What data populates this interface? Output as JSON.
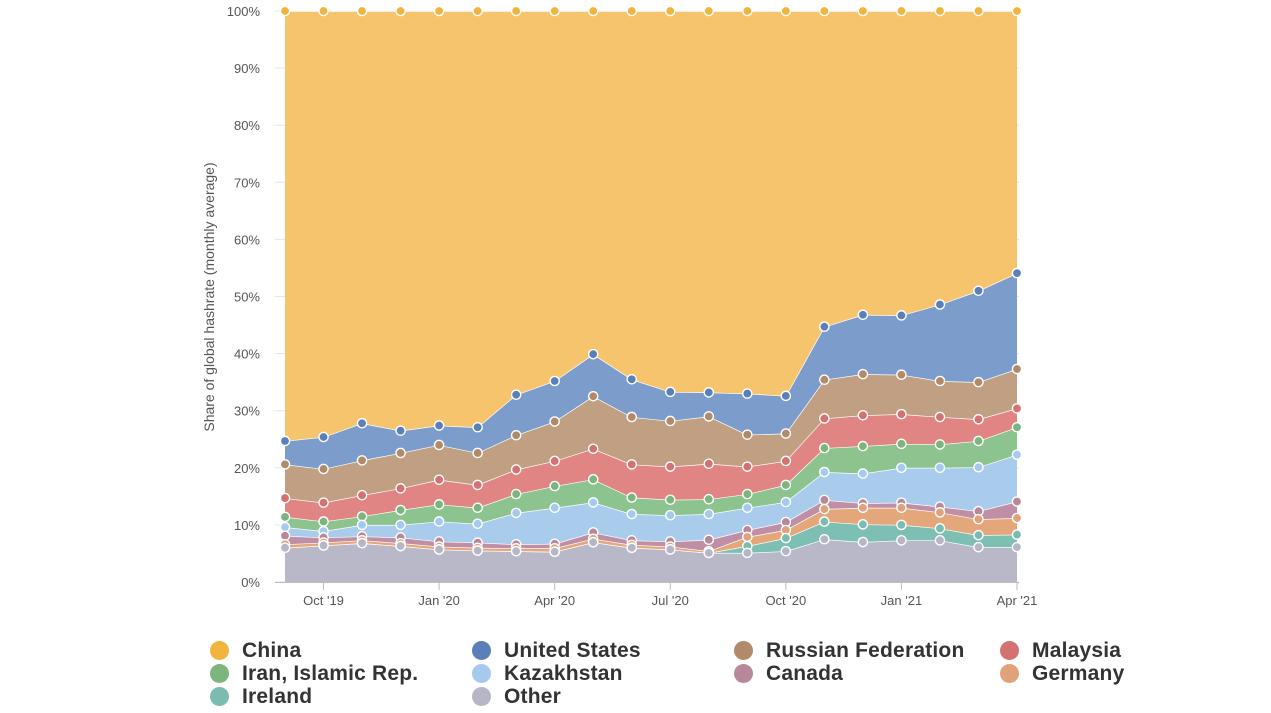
{
  "chart_data": {
    "type": "area",
    "stacking": "percent",
    "ylabel": "Share of global hashrate (monthly average)",
    "xlabel": "",
    "ylim": [
      0,
      100
    ],
    "y_ticks": [
      "0%",
      "10%",
      "20%",
      "30%",
      "40%",
      "50%",
      "60%",
      "70%",
      "80%",
      "90%",
      "100%"
    ],
    "months": [
      "Sep '19",
      "Oct '19",
      "Nov '19",
      "Dec '19",
      "Jan '20",
      "Feb '20",
      "Mar '20",
      "Apr '20",
      "May '20",
      "Jun '20",
      "Jul '20",
      "Aug '20",
      "Sep '20",
      "Oct '20",
      "Nov '20",
      "Dec '20",
      "Jan '21",
      "Feb '21",
      "Mar '21",
      "Apr '21"
    ],
    "x_tick_labels": [
      {
        "index": 1,
        "label": "Oct '19"
      },
      {
        "index": 4,
        "label": "Jan '20"
      },
      {
        "index": 7,
        "label": "Apr '20"
      },
      {
        "index": 10,
        "label": "Jul '20"
      },
      {
        "index": 13,
        "label": "Oct '20"
      },
      {
        "index": 16,
        "label": "Jan '21"
      },
      {
        "index": 19,
        "label": "Apr '21"
      }
    ],
    "grid": true,
    "legend_position": "bottom",
    "series": [
      {
        "name": "Other",
        "color": "#b8b8c8",
        "values": [
          6.0,
          6.4,
          6.8,
          6.3,
          5.7,
          5.5,
          5.4,
          5.3,
          6.9,
          6.0,
          5.7,
          5.1,
          5.1,
          5.4,
          7.5,
          7.0,
          7.3,
          7.3,
          6.1,
          6.1
        ]
      },
      {
        "name": "Ireland",
        "color": "#7dbfb3",
        "values": [
          0.0,
          0.0,
          0.0,
          0.0,
          0.0,
          0.0,
          0.0,
          0.0,
          0.0,
          0.0,
          0.0,
          0.0,
          1.2,
          2.3,
          3.1,
          3.1,
          2.7,
          2.1,
          2.1,
          2.2
        ]
      },
      {
        "name": "Germany",
        "color": "#e3a77b",
        "values": [
          0.6,
          0.5,
          0.5,
          0.5,
          0.5,
          0.5,
          0.5,
          0.6,
          0.6,
          0.5,
          0.5,
          0.3,
          1.6,
          1.4,
          2.2,
          2.9,
          3.0,
          2.8,
          2.8,
          2.9
        ]
      },
      {
        "name": "Canada",
        "color": "#c08fa5",
        "values": [
          1.5,
          0.9,
          0.7,
          1.0,
          0.9,
          0.9,
          0.7,
          0.8,
          1.1,
          0.8,
          0.9,
          2.0,
          1.2,
          1.4,
          1.6,
          0.8,
          0.9,
          1.0,
          1.4,
          2.9
        ]
      },
      {
        "name": "Kazakhstan",
        "color": "#a9cbec",
        "values": [
          1.5,
          1.1,
          2.0,
          2.2,
          3.5,
          3.3,
          5.5,
          6.3,
          5.2,
          4.6,
          4.6,
          4.5,
          3.9,
          3.5,
          4.9,
          5.2,
          6.1,
          6.8,
          7.7,
          8.2
        ]
      },
      {
        "name": "Iran, Islamic Rep.",
        "color": "#8cc38e",
        "values": [
          1.8,
          1.7,
          1.5,
          2.6,
          3.0,
          2.8,
          3.3,
          3.8,
          4.0,
          2.9,
          2.7,
          2.6,
          2.4,
          3.0,
          4.2,
          4.8,
          4.2,
          4.1,
          4.6,
          4.8
        ]
      },
      {
        "name": "Malaysia",
        "color": "#e08484",
        "values": [
          3.3,
          3.3,
          3.7,
          3.8,
          4.3,
          4.0,
          4.3,
          4.4,
          5.3,
          5.8,
          5.8,
          6.2,
          4.8,
          4.2,
          5.2,
          5.4,
          5.2,
          4.8,
          3.8,
          3.3
        ]
      },
      {
        "name": "Russian Federation",
        "color": "#c09f83",
        "values": [
          5.9,
          5.9,
          6.1,
          6.2,
          6.1,
          5.6,
          6.0,
          6.9,
          9.1,
          8.3,
          8.0,
          8.3,
          5.6,
          4.8,
          6.8,
          7.2,
          6.9,
          6.3,
          6.5,
          6.9
        ]
      },
      {
        "name": "United States",
        "color": "#7c9dcc",
        "values": [
          4.1,
          5.6,
          6.5,
          3.9,
          3.4,
          4.5,
          7.1,
          7.1,
          7.3,
          6.6,
          5.1,
          4.2,
          7.2,
          6.6,
          9.3,
          10.4,
          10.4,
          13.4,
          16.0,
          16.8
        ]
      },
      {
        "name": "China",
        "color": "#f5c46c",
        "values": [
          75.3,
          74.6,
          72.2,
          73.5,
          72.6,
          72.9,
          67.2,
          64.8,
          59.5,
          64.5,
          66.7,
          66.8,
          67.0,
          67.4,
          55.4,
          53.2,
          53.3,
          51.4,
          49.0,
          45.9
        ]
      }
    ],
    "legend": [
      {
        "name": "China",
        "color": "#f1b43d"
      },
      {
        "name": "United States",
        "color": "#5b80b9"
      },
      {
        "name": "Russian Federation",
        "color": "#b08a6b"
      },
      {
        "name": "Malaysia",
        "color": "#d47272"
      },
      {
        "name": "Iran, Islamic Rep.",
        "color": "#7cb67e"
      },
      {
        "name": "Kazakhstan",
        "color": "#a5c9ef"
      },
      {
        "name": "Canada",
        "color": "#b88799"
      },
      {
        "name": "Germany",
        "color": "#dfa27a"
      },
      {
        "name": "Ireland",
        "color": "#7cbcb0"
      },
      {
        "name": "Other",
        "color": "#b6b6c6"
      }
    ]
  }
}
